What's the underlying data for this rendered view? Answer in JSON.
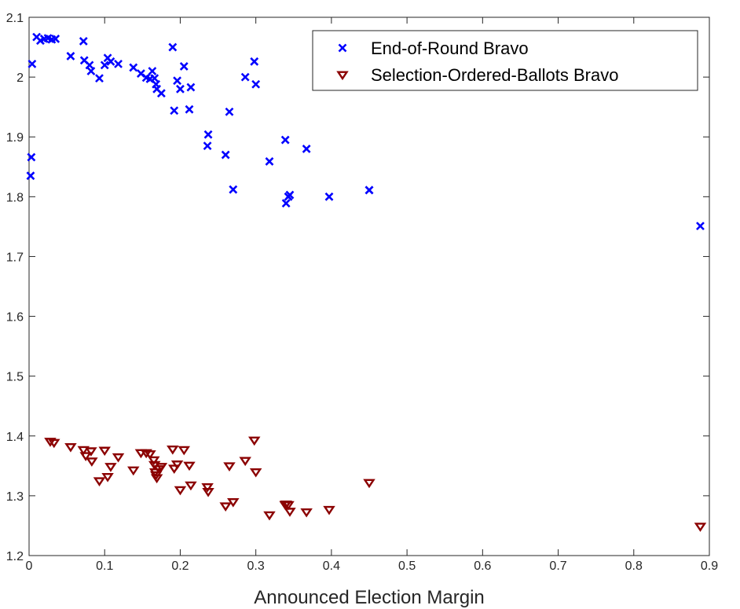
{
  "chart_data": {
    "type": "scatter",
    "title": "",
    "xlabel": "Announced Election Margin",
    "ylabel": "",
    "xlim": [
      0,
      0.9
    ],
    "ylim": [
      1.2,
      2.1
    ],
    "xticks": [
      "0",
      "0.1",
      "0.2",
      "0.3",
      "0.4",
      "0.5",
      "0.6",
      "0.7",
      "0.8",
      "0.9"
    ],
    "yticks": [
      "1.2",
      "1.3",
      "1.4",
      "1.5",
      "1.6",
      "1.7",
      "1.8",
      "1.9",
      "2",
      "2.1"
    ],
    "grid": false,
    "legend_position": "top-right",
    "series": [
      {
        "name": "End-of-Round Bravo",
        "marker": "x",
        "color": "#0000ff",
        "points": [
          [
            0.002,
            1.835
          ],
          [
            0.003,
            1.866
          ],
          [
            0.004,
            2.022
          ],
          [
            0.01,
            2.067
          ],
          [
            0.015,
            2.061
          ],
          [
            0.02,
            2.064
          ],
          [
            0.025,
            2.065
          ],
          [
            0.03,
            2.063
          ],
          [
            0.035,
            2.064
          ],
          [
            0.055,
            2.035
          ],
          [
            0.072,
            2.06
          ],
          [
            0.073,
            2.028
          ],
          [
            0.08,
            2.02
          ],
          [
            0.082,
            2.01
          ],
          [
            0.093,
            1.998
          ],
          [
            0.1,
            2.02
          ],
          [
            0.104,
            2.032
          ],
          [
            0.108,
            2.026
          ],
          [
            0.118,
            2.022
          ],
          [
            0.138,
            2.016
          ],
          [
            0.148,
            2.006
          ],
          [
            0.155,
            1.999
          ],
          [
            0.16,
            1.997
          ],
          [
            0.163,
            2.01
          ],
          [
            0.166,
            1.998
          ],
          [
            0.168,
            1.988
          ],
          [
            0.169,
            1.98
          ],
          [
            0.175,
            1.973
          ],
          [
            0.19,
            2.05
          ],
          [
            0.192,
            1.944
          ],
          [
            0.196,
            1.994
          ],
          [
            0.2,
            1.98
          ],
          [
            0.205,
            2.018
          ],
          [
            0.212,
            1.946
          ],
          [
            0.214,
            1.983
          ],
          [
            0.236,
            1.885
          ],
          [
            0.237,
            1.904
          ],
          [
            0.26,
            1.87
          ],
          [
            0.265,
            1.942
          ],
          [
            0.27,
            1.812
          ],
          [
            0.286,
            2.0
          ],
          [
            0.298,
            2.026
          ],
          [
            0.3,
            1.988
          ],
          [
            0.318,
            1.859
          ],
          [
            0.339,
            1.895
          ],
          [
            0.34,
            1.789
          ],
          [
            0.343,
            1.8
          ],
          [
            0.345,
            1.803
          ],
          [
            0.367,
            1.88
          ],
          [
            0.397,
            1.8
          ],
          [
            0.45,
            1.811
          ],
          [
            0.45,
            1.811
          ],
          [
            0.888,
            1.751
          ]
        ]
      },
      {
        "name": "Selection-Ordered-Ballots Bravo",
        "marker": "triangle-down",
        "color": "#8b0000",
        "points": [
          [
            0.028,
            1.391
          ],
          [
            0.033,
            1.389
          ],
          [
            0.055,
            1.382
          ],
          [
            0.072,
            1.377
          ],
          [
            0.075,
            1.367
          ],
          [
            0.082,
            1.375
          ],
          [
            0.083,
            1.358
          ],
          [
            0.093,
            1.325
          ],
          [
            0.1,
            1.376
          ],
          [
            0.104,
            1.332
          ],
          [
            0.108,
            1.349
          ],
          [
            0.118,
            1.365
          ],
          [
            0.138,
            1.343
          ],
          [
            0.148,
            1.372
          ],
          [
            0.155,
            1.372
          ],
          [
            0.16,
            1.37
          ],
          [
            0.165,
            1.36
          ],
          [
            0.166,
            1.352
          ],
          [
            0.167,
            1.34
          ],
          [
            0.168,
            1.335
          ],
          [
            0.169,
            1.33
          ],
          [
            0.172,
            1.345
          ],
          [
            0.175,
            1.349
          ],
          [
            0.19,
            1.378
          ],
          [
            0.192,
            1.346
          ],
          [
            0.196,
            1.353
          ],
          [
            0.2,
            1.31
          ],
          [
            0.205,
            1.377
          ],
          [
            0.212,
            1.351
          ],
          [
            0.214,
            1.318
          ],
          [
            0.236,
            1.315
          ],
          [
            0.237,
            1.307
          ],
          [
            0.26,
            1.283
          ],
          [
            0.265,
            1.35
          ],
          [
            0.27,
            1.29
          ],
          [
            0.286,
            1.359
          ],
          [
            0.298,
            1.393
          ],
          [
            0.3,
            1.34
          ],
          [
            0.318,
            1.268
          ],
          [
            0.339,
            1.285
          ],
          [
            0.34,
            1.286
          ],
          [
            0.343,
            1.285
          ],
          [
            0.345,
            1.274
          ],
          [
            0.367,
            1.273
          ],
          [
            0.397,
            1.277
          ],
          [
            0.45,
            1.322
          ],
          [
            0.888,
            1.249
          ]
        ]
      }
    ]
  }
}
